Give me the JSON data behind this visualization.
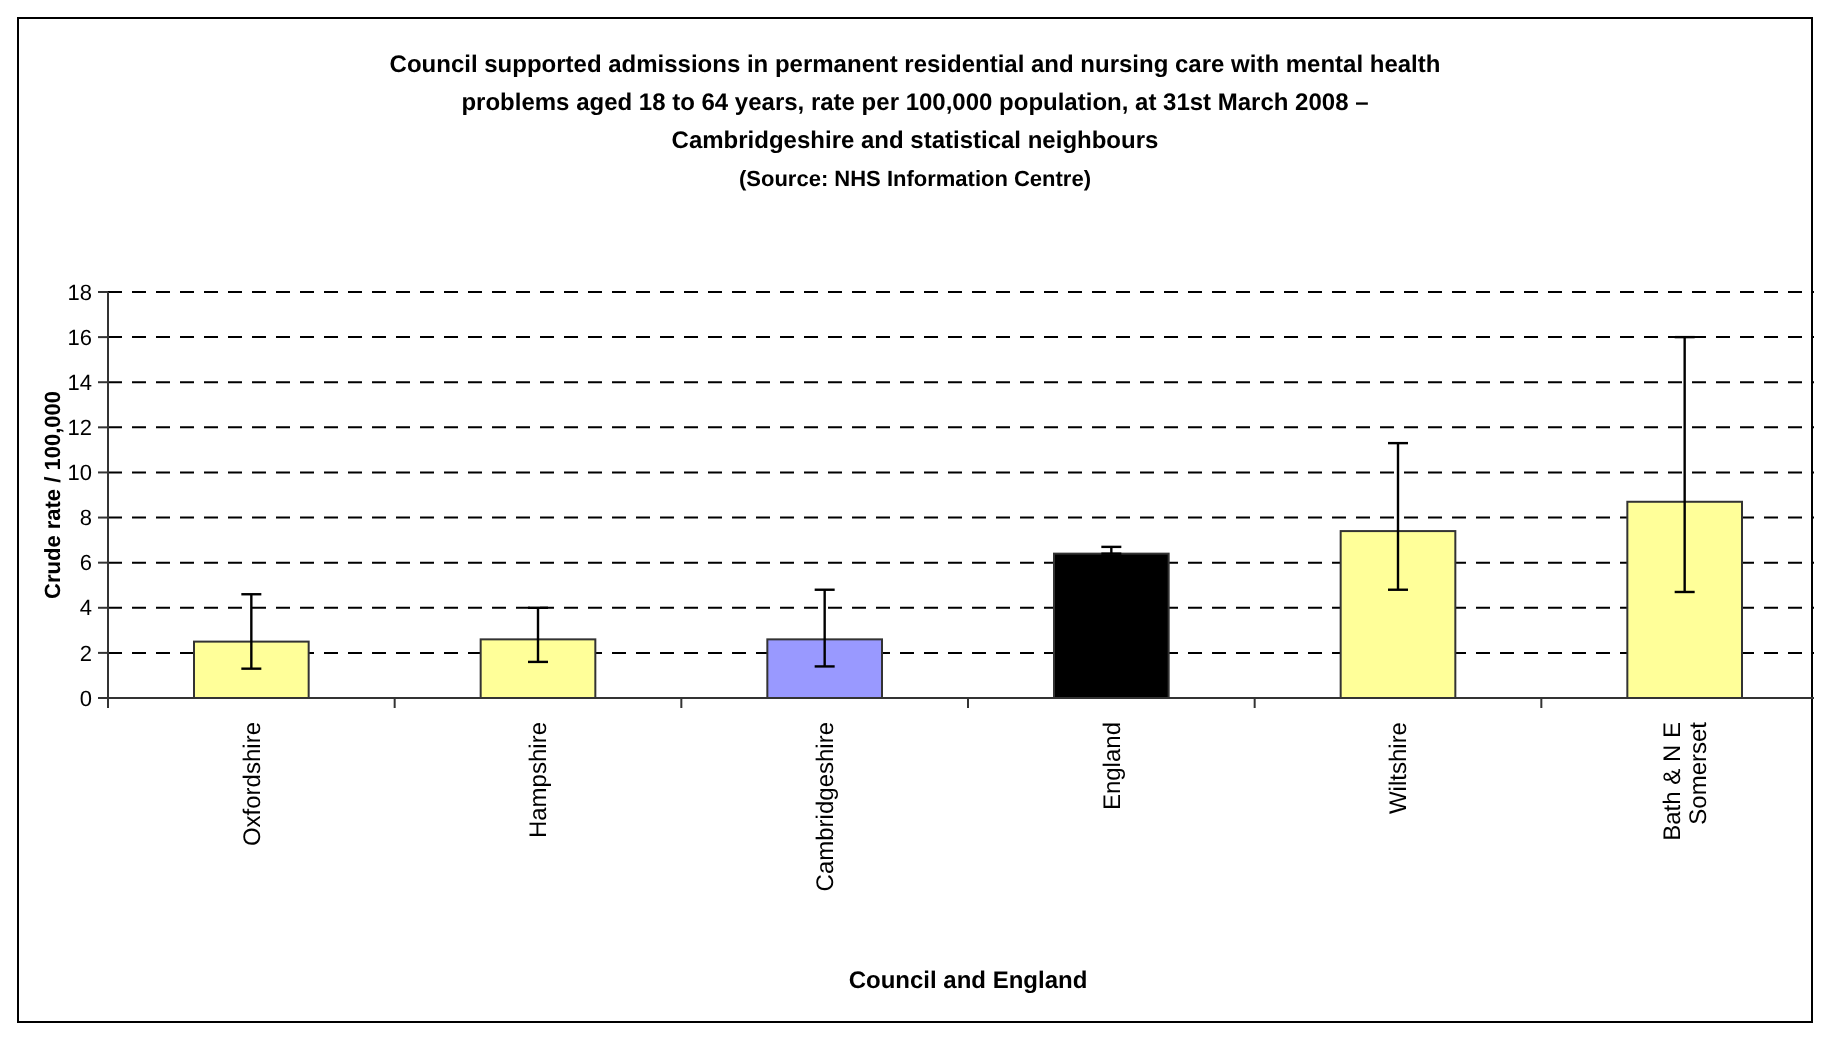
{
  "chart_data": {
    "type": "bar",
    "title": "Council supported admissions in permanent residential and nursing care with mental health problems aged 18 to 64 years, rate per 100,000 population, at 31st March 2008 – Cambridgeshire and statistical neighbours",
    "subtitle": "(Source: NHS Information Centre)",
    "xlabel": "Council and England",
    "ylabel": "Crude rate / 100,000",
    "categories": [
      "Oxfordshire",
      "Hampshire",
      "Cambridgeshire",
      "England",
      "Wiltshire",
      "Bath & N E Somerset"
    ],
    "values": [
      2.5,
      2.6,
      2.6,
      6.4,
      7.4,
      8.7
    ],
    "colors": [
      "#ffff99",
      "#ffff99",
      "#9999ff",
      "#000000",
      "#ffff99",
      "#ffff99"
    ],
    "errors": [
      [
        1.3,
        4.6
      ],
      [
        1.6,
        4.0
      ],
      [
        1.4,
        4.8
      ],
      [
        6.4,
        6.7
      ],
      [
        4.8,
        11.3
      ],
      [
        4.7,
        16.0
      ]
    ],
    "ylim": [
      0,
      18
    ],
    "yticks": [
      0,
      2,
      4,
      6,
      8,
      10,
      12,
      14,
      16,
      18
    ],
    "grid": "y"
  }
}
